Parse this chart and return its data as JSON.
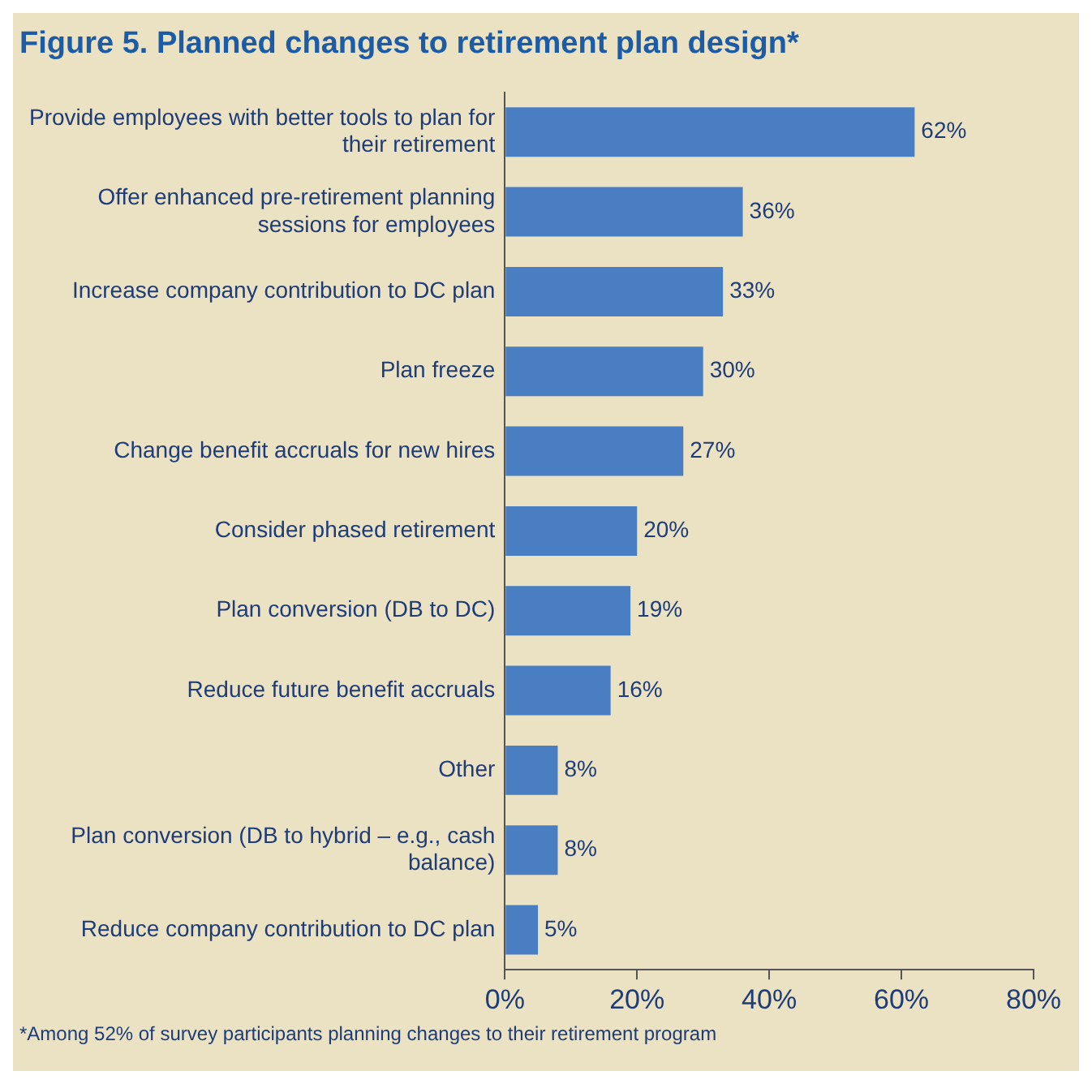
{
  "chart_data": {
    "type": "bar",
    "orientation": "horizontal",
    "title": "Figure 5. Planned changes to retirement plan design*",
    "categories": [
      "Provide employees with better tools to plan for their retirement",
      "Offer enhanced pre-retirement planning sessions for employees",
      "Increase company contribution to DC plan",
      "Plan freeze",
      "Change benefit accruals for new hires",
      "Consider phased retirement",
      "Plan conversion (DB to DC)",
      "Reduce future benefit accruals",
      "Other",
      "Plan conversion (DB to hybrid – e.g., cash balance)",
      "Reduce company contribution to DC plan"
    ],
    "values": [
      62,
      36,
      33,
      30,
      27,
      20,
      19,
      16,
      8,
      8,
      5
    ],
    "value_labels": [
      "62%",
      "36%",
      "33%",
      "30%",
      "27%",
      "20%",
      "19%",
      "16%",
      "8%",
      "8%",
      "5%"
    ],
    "color": "#4a7ec2",
    "xlim": [
      0,
      80
    ],
    "xticks": [
      {
        "value": 0,
        "label": "0%"
      },
      {
        "value": 20,
        "label": "20%"
      },
      {
        "value": 40,
        "label": "40%"
      },
      {
        "value": 60,
        "label": "60%"
      },
      {
        "value": 80,
        "label": "80%"
      }
    ],
    "grid": false,
    "legend": false,
    "annotations": [
      "*Among 52% of survey participants planning changes to their retirement program"
    ]
  }
}
